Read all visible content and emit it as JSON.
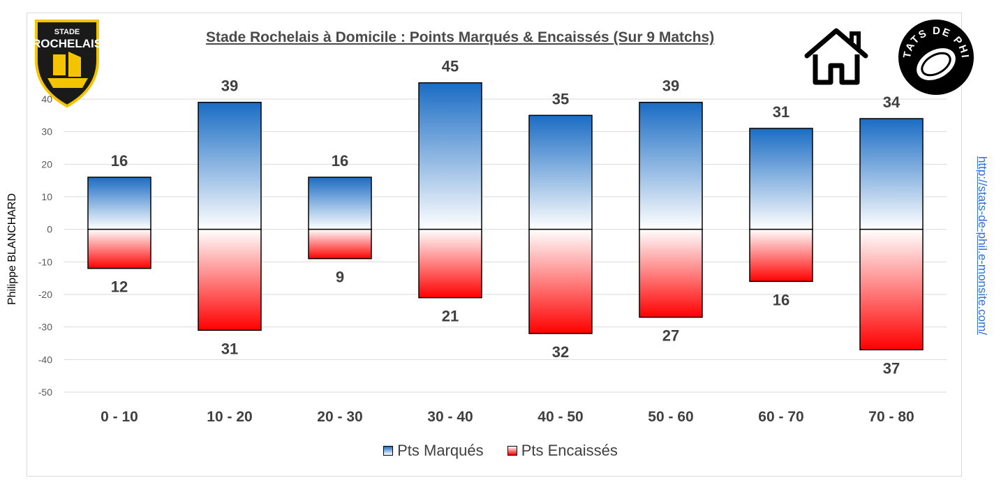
{
  "header": {
    "title": "Stade Rochelais à Domicile : Points Marqués & Encaissés (Sur 9 Matchs)",
    "author": "Philippe BLANCHARD",
    "url": "http://stats-de-phil.e-monsite.com/",
    "club_logo_text": [
      "STADE",
      "ROCHELAIS"
    ],
    "stats_logo_text": "STATS DE PHIL"
  },
  "icons": {
    "home": "home-icon",
    "club_logo": "stade-rochelais-logo",
    "stats_logo": "stats-de-phil-logo"
  },
  "colors": {
    "scored_top": "#1a6cc4",
    "conceded_bottom": "#ff0000",
    "grid": "#d9d9d9",
    "axis_text": "#595959",
    "label_text": "#404040",
    "url_text": "#2f6fd6",
    "logo_yellow": "#f5c400"
  },
  "chart_data": {
    "type": "bar",
    "title": "Stade Rochelais à Domicile : Points Marqués & Encaissés (Sur 9 Matchs)",
    "xlabel": "",
    "ylabel": "",
    "categories": [
      "0 - 10",
      "10 - 20",
      "20 - 30",
      "30 - 40",
      "40 - 50",
      "50 - 60",
      "60 - 70",
      "70 - 80"
    ],
    "series": [
      {
        "name": "Pts Marqués",
        "values": [
          16,
          39,
          16,
          45,
          35,
          39,
          31,
          34
        ]
      },
      {
        "name": "Pts Encaissés",
        "values": [
          -12,
          -31,
          -9,
          -21,
          -32,
          -27,
          -16,
          -37
        ]
      }
    ],
    "data_labels": {
      "scored": [
        "16",
        "39",
        "16",
        "45",
        "35",
        "39",
        "31",
        "34"
      ],
      "conceded": [
        "12",
        "31",
        "9",
        "21",
        "32",
        "27",
        "16",
        "37"
      ]
    },
    "ylim": [
      -50,
      40
    ],
    "yticks": [
      40,
      30,
      20,
      10,
      0,
      -10,
      -20,
      -30,
      -40,
      -50
    ],
    "grid": true,
    "legend": "bottom",
    "stacked": true
  }
}
